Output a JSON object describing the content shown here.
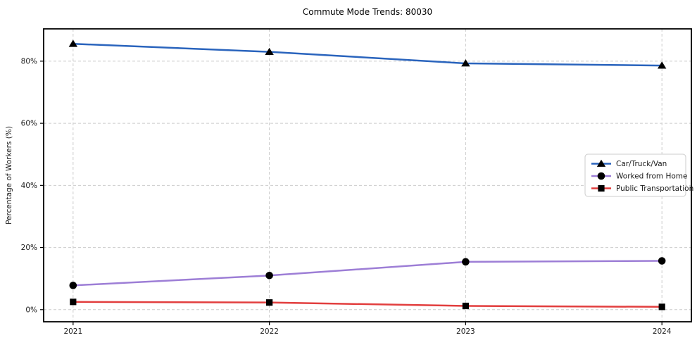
{
  "page": {
    "background_color": "#ffffff"
  },
  "chart_data": {
    "type": "line",
    "title": "Commute Mode Trends: 80030",
    "xlabel": "",
    "ylabel": "Percentage of Workers (%)",
    "categories": [
      2021,
      2022,
      2023,
      2024
    ],
    "xtick_labels": [
      "2021",
      "2022",
      "2023",
      "2024"
    ],
    "yticks": [
      0,
      20,
      40,
      60,
      80
    ],
    "ytick_labels": [
      "0%",
      "20%",
      "40%",
      "60%",
      "80%"
    ],
    "xlim": [
      2020.85,
      2024.15
    ],
    "ylim": [
      -3.9,
      90.4
    ],
    "grid": true,
    "grid_style": "dashed",
    "grid_color": "#cccccc",
    "spine_color": "#000000",
    "legend_position": "center-right",
    "series": [
      {
        "name": "Car/Truck/Van",
        "values": [
          85.6,
          83.0,
          79.3,
          78.6
        ],
        "color": "#2a64bd",
        "marker": "triangle"
      },
      {
        "name": "Worked from Home",
        "values": [
          7.8,
          11.0,
          15.4,
          15.7
        ],
        "color": "#9d7ed6",
        "marker": "circle"
      },
      {
        "name": "Public Transportation",
        "values": [
          2.5,
          2.3,
          1.2,
          0.9
        ],
        "color": "#e23e3e",
        "marker": "square"
      }
    ]
  }
}
